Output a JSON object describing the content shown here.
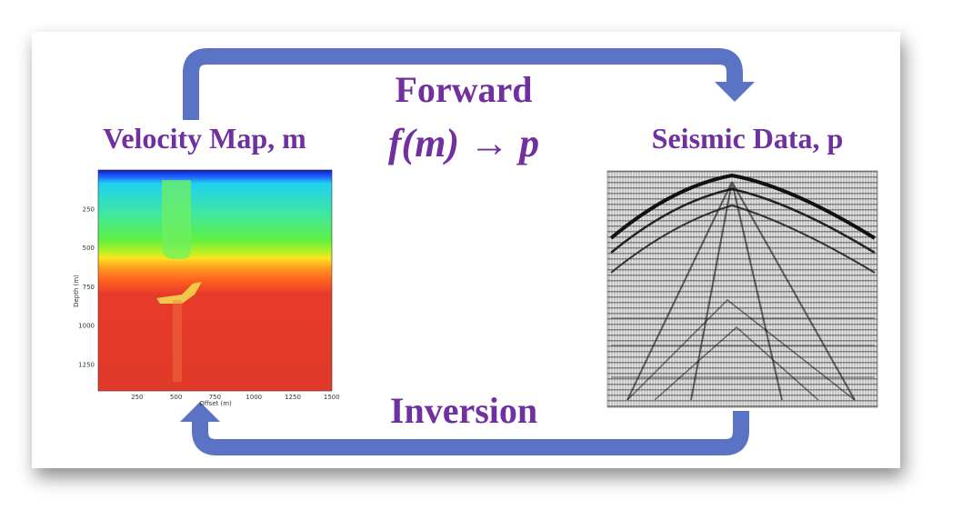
{
  "forward_label": "Forward",
  "forward_formula": "f(m) → p",
  "left_title": "Velocity Map, m",
  "right_title": "Seismic Data, p",
  "inversion_label": "Inversion",
  "velocity_map": {
    "y_label": "Depth (m)",
    "x_label": "Offset (m)",
    "y_ticks": [
      250,
      500,
      750,
      1000,
      1250
    ],
    "x_ticks": [
      250,
      500,
      750,
      1000,
      1250,
      1500
    ]
  }
}
